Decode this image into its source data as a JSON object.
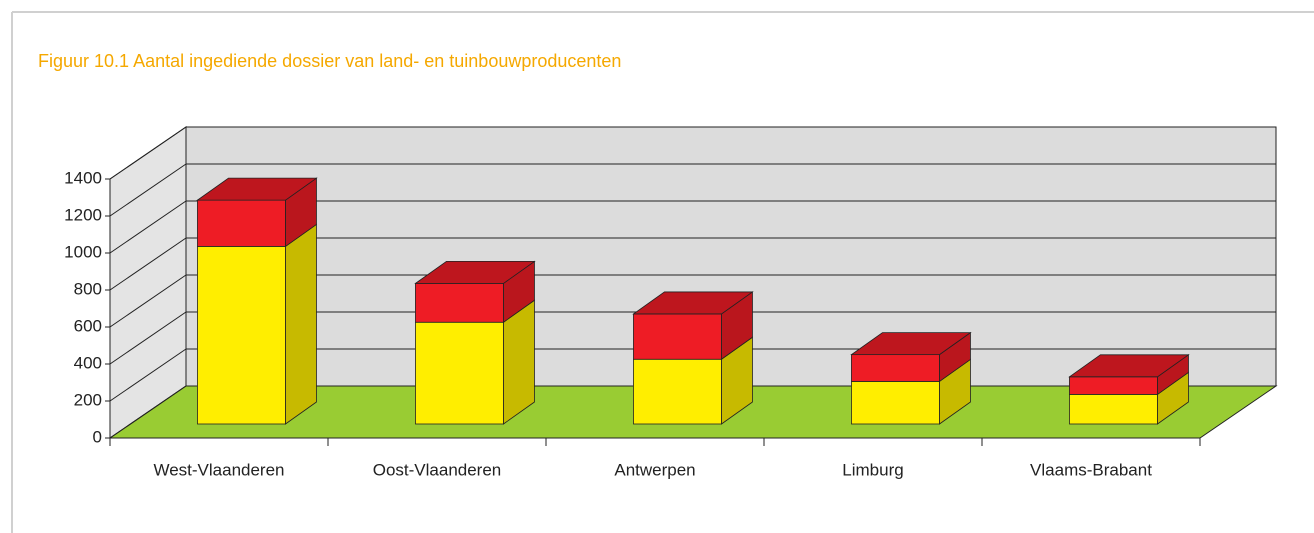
{
  "chart_data": {
    "type": "bar3d_stacked",
    "title": "Figuur 10.1 Aantal ingediende dossier van land- en tuinbouwproducenten",
    "categories": [
      "West-Vlaanderen",
      "Oost-Vlaanderen",
      "Antwerpen",
      "Limburg",
      "Vlaams-Brabant"
    ],
    "series": [
      {
        "color": "#ffee00",
        "values": [
          960,
          550,
          350,
          230,
          160
        ]
      },
      {
        "color": "#ee1c25",
        "values": [
          250,
          210,
          245,
          145,
          95
        ]
      }
    ],
    "ylim": [
      0,
      1400
    ],
    "yticks": [
      0,
      200,
      400,
      600,
      800,
      1000,
      1200,
      1400
    ],
    "grid": true
  }
}
